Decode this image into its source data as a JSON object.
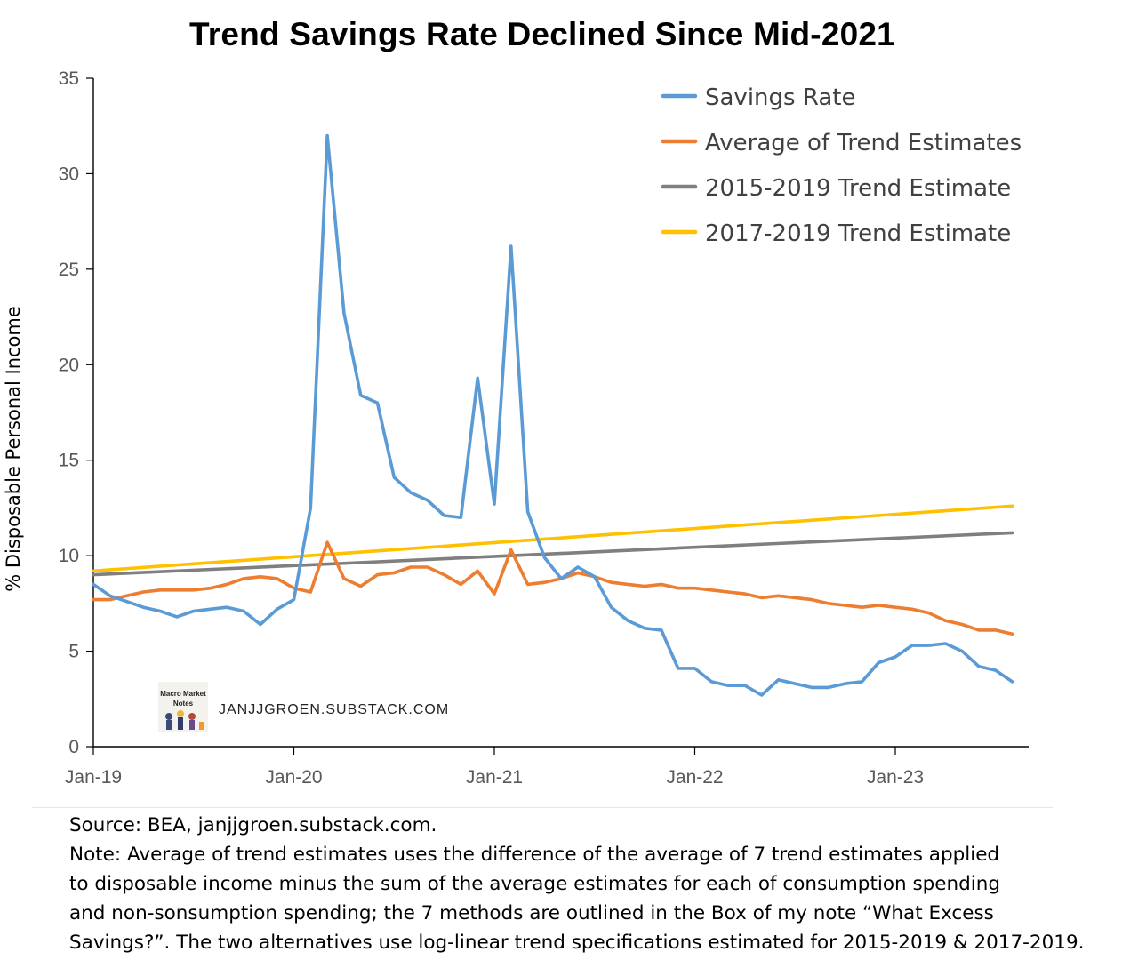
{
  "chart_data": {
    "type": "line",
    "title": "Trend Savings Rate Declined Since Mid-2021",
    "ylabel": "% Disposable Personal Income",
    "xlabel": "",
    "ylim": [
      0,
      35
    ],
    "yticks": [
      0,
      5,
      10,
      15,
      20,
      25,
      30,
      35
    ],
    "xlim": [
      "2019-01",
      "2023-08"
    ],
    "xticks": [
      {
        "date": "2019-01",
        "label": "Jan-19"
      },
      {
        "date": "2020-01",
        "label": "Jan-20"
      },
      {
        "date": "2021-01",
        "label": "Jan-21"
      },
      {
        "date": "2022-01",
        "label": "Jan-22"
      },
      {
        "date": "2023-01",
        "label": "Jan-23"
      }
    ],
    "x": [
      "2019-01",
      "2019-02",
      "2019-03",
      "2019-04",
      "2019-05",
      "2019-06",
      "2019-07",
      "2019-08",
      "2019-09",
      "2019-10",
      "2019-11",
      "2019-12",
      "2020-01",
      "2020-02",
      "2020-03",
      "2020-04",
      "2020-05",
      "2020-06",
      "2020-07",
      "2020-08",
      "2020-09",
      "2020-10",
      "2020-11",
      "2020-12",
      "2021-01",
      "2021-02",
      "2021-03",
      "2021-04",
      "2021-05",
      "2021-06",
      "2021-07",
      "2021-08",
      "2021-09",
      "2021-10",
      "2021-11",
      "2021-12",
      "2022-01",
      "2022-02",
      "2022-03",
      "2022-04",
      "2022-05",
      "2022-06",
      "2022-07",
      "2022-08",
      "2022-09",
      "2022-10",
      "2022-11",
      "2022-12",
      "2023-01",
      "2023-02",
      "2023-03",
      "2023-04",
      "2023-05",
      "2023-06",
      "2023-07",
      "2023-08"
    ],
    "grid": false,
    "legend_position": "top-right",
    "series": [
      {
        "name": "Savings Rate",
        "color": "#5B9BD5",
        "values": [
          8.5,
          7.9,
          7.6,
          7.3,
          7.1,
          6.8,
          7.1,
          7.2,
          7.3,
          7.1,
          6.4,
          7.2,
          7.7,
          12.5,
          32.0,
          22.7,
          18.4,
          18.0,
          14.1,
          13.3,
          12.9,
          12.1,
          12.0,
          19.3,
          12.7,
          26.2,
          12.3,
          9.9,
          8.8,
          9.4,
          8.9,
          7.3,
          6.6,
          6.2,
          6.1,
          4.1,
          4.1,
          3.4,
          3.2,
          3.2,
          2.7,
          3.5,
          3.3,
          3.1,
          3.1,
          3.3,
          3.4,
          4.4,
          4.7,
          5.3,
          5.3,
          5.4,
          5.0,
          4.2,
          4.0,
          3.4
        ]
      },
      {
        "name": "Average of Trend Estimates",
        "color": "#ED7D31",
        "values": [
          7.7,
          7.7,
          7.9,
          8.1,
          8.2,
          8.2,
          8.2,
          8.3,
          8.5,
          8.8,
          8.9,
          8.8,
          8.3,
          8.1,
          10.7,
          8.8,
          8.4,
          9.0,
          9.1,
          9.4,
          9.4,
          9.0,
          8.5,
          9.2,
          8.0,
          10.3,
          8.5,
          8.6,
          8.8,
          9.1,
          8.9,
          8.6,
          8.5,
          8.4,
          8.5,
          8.3,
          8.3,
          8.2,
          8.1,
          8.0,
          7.8,
          7.9,
          7.8,
          7.7,
          7.5,
          7.4,
          7.3,
          7.4,
          7.3,
          7.2,
          7.0,
          6.6,
          6.4,
          6.1,
          6.1,
          5.9
        ]
      },
      {
        "name": "2015-2019 Trend Estimate",
        "color": "#7F7F7F",
        "values_linear": {
          "start": 9.0,
          "end": 11.2
        }
      },
      {
        "name": "2017-2019 Trend Estimate",
        "color": "#FFC000",
        "values_linear": {
          "start": 9.2,
          "end": 12.6
        }
      }
    ]
  },
  "watermark": {
    "text": "JANJJGROEN.SUBSTACK.COM",
    "logo_line1": "Macro Market",
    "logo_line2": "Notes"
  },
  "footer": {
    "source": "Source: BEA, janjjgroen.substack.com.",
    "note_lines": [
      "Note: Average of trend estimates uses the difference of the average of 7 trend estimates applied",
      "to disposable income minus the sum of the average estimates for each of consumption spending",
      "and non-sonsumption spending; the 7 methods are outlined in the Box  of my note “What Excess",
      "Savings?”. The two alternatives use log-linear trend specifications estimated for 2015-2019 & 2017-2019."
    ]
  }
}
